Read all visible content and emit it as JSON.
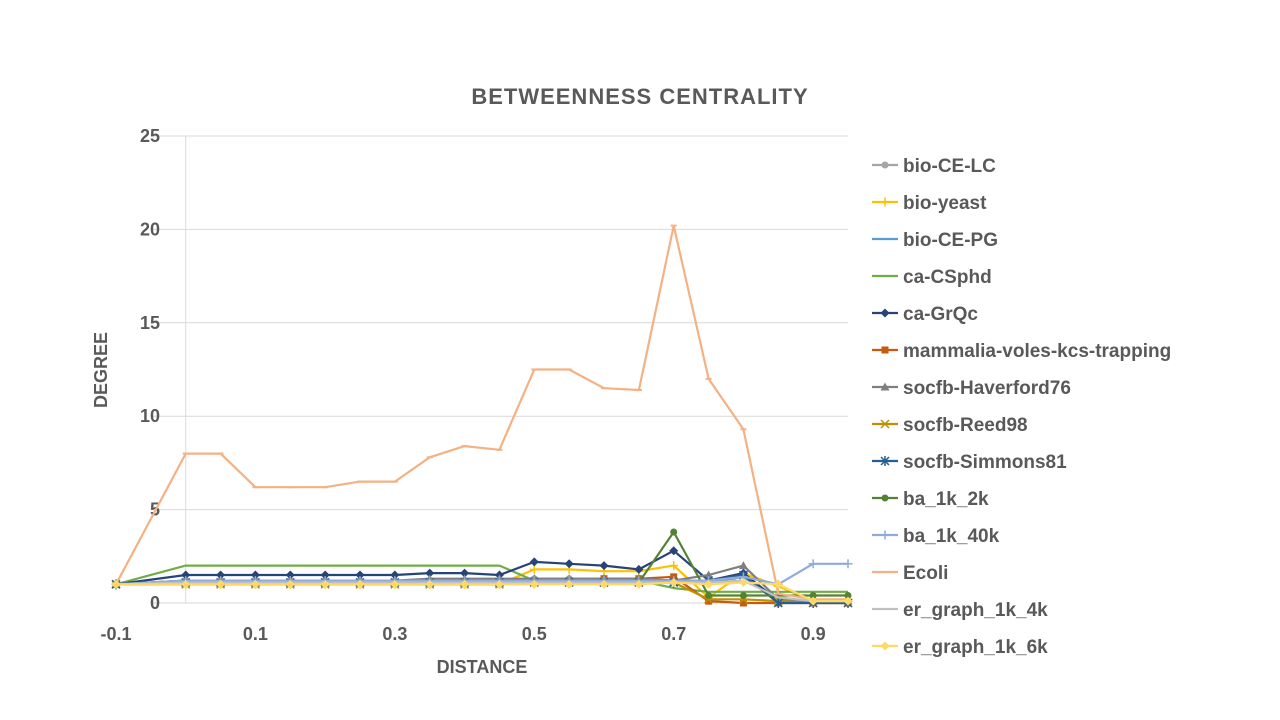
{
  "chart_data": {
    "type": "line",
    "title": "BETWEENNESS CENTRALITY",
    "xlabel": "DISTANCE",
    "ylabel": "DEGREE",
    "xlim": [
      -0.1,
      0.95
    ],
    "ylim": [
      0,
      25
    ],
    "x_ticks": [
      "-0.1",
      "0.1",
      "0.3",
      "0.5",
      "0.7",
      "0.9"
    ],
    "y_ticks": [
      "0",
      "5",
      "10",
      "15",
      "20",
      "25"
    ],
    "grid": "horizontal",
    "legend_position": "right",
    "x": [
      -0.1,
      0,
      0.05,
      0.1,
      0.15,
      0.2,
      0.25,
      0.3,
      0.35,
      0.4,
      0.45,
      0.5,
      0.55,
      0.6,
      0.65,
      0.7,
      0.75,
      0.8,
      0.85,
      0.9,
      0.95
    ],
    "series": [
      {
        "name": "bio-CE-LC",
        "color": "#a5a5a5",
        "marker": "circle",
        "values": [
          1,
          1.2,
          1.2,
          1.2,
          1.2,
          1.2,
          1.2,
          1.2,
          1.2,
          1.2,
          1.2,
          1.3,
          1.3,
          1.3,
          1.3,
          1.2,
          1.2,
          1.5,
          0.2,
          0.1,
          0.1
        ]
      },
      {
        "name": "bio-yeast",
        "color": "#ffc000",
        "marker": "plus",
        "values": [
          1,
          1,
          1,
          1,
          1,
          1,
          1,
          1,
          1,
          1,
          1,
          1.8,
          1.8,
          1.7,
          1.7,
          2,
          0.3,
          1.6,
          0.9,
          0.1,
          0.1
        ]
      },
      {
        "name": "bio-CE-PG",
        "color": "#5b9bd5",
        "marker": "none",
        "values": [
          1,
          1.2,
          1.2,
          1.2,
          1.2,
          1.2,
          1.2,
          1.2,
          1.2,
          1.2,
          1.2,
          1.2,
          1.2,
          1.2,
          1.2,
          1.2,
          1.1,
          1.4,
          0.2,
          0.1,
          0.1
        ]
      },
      {
        "name": "ca-CSphd",
        "color": "#70ad47",
        "marker": "none",
        "values": [
          1,
          2,
          2,
          2,
          2,
          2,
          2,
          2,
          2,
          2,
          2,
          1.2,
          1.2,
          1.2,
          1.2,
          0.8,
          0.6,
          0.6,
          0.6,
          0.6,
          0.6
        ]
      },
      {
        "name": "ca-GrQc",
        "color": "#264478",
        "marker": "diamond",
        "values": [
          1,
          1.5,
          1.5,
          1.5,
          1.5,
          1.5,
          1.5,
          1.5,
          1.6,
          1.6,
          1.5,
          2.2,
          2.1,
          2,
          1.8,
          2.8,
          1.2,
          1.6,
          0.1,
          0.1,
          0.1
        ]
      },
      {
        "name": "mammalia-voles-kcs-trapping",
        "color": "#c55a11",
        "marker": "square",
        "values": [
          1,
          1.1,
          1.1,
          1.1,
          1.1,
          1.1,
          1.1,
          1.1,
          1.1,
          1.1,
          1.1,
          1.2,
          1.2,
          1.3,
          1.3,
          1.4,
          0.1,
          0,
          0,
          0,
          0
        ]
      },
      {
        "name": "socfb-Haverford76",
        "color": "#7f7f7f",
        "marker": "triangle",
        "values": [
          1,
          1.2,
          1.2,
          1.2,
          1.2,
          1.2,
          1.2,
          1.2,
          1.3,
          1.3,
          1.3,
          1.3,
          1.3,
          1.3,
          1.3,
          1.2,
          1.5,
          2,
          0.2,
          0.1,
          0.1
        ]
      },
      {
        "name": "socfb-Reed98",
        "color": "#bf9000",
        "marker": "x",
        "values": [
          1,
          1,
          1,
          1,
          1,
          1,
          1,
          1,
          1,
          1,
          1,
          1.1,
          1.1,
          1.1,
          1.1,
          1.1,
          0.2,
          0.2,
          0.1,
          0,
          0
        ]
      },
      {
        "name": "socfb-Simmons81",
        "color": "#255e91",
        "marker": "star",
        "values": [
          1,
          1.1,
          1.1,
          1.1,
          1.1,
          1.1,
          1.1,
          1.1,
          1.1,
          1.1,
          1.1,
          1.1,
          1.1,
          1.1,
          1.1,
          1.1,
          1.2,
          1.5,
          0,
          0,
          0
        ]
      },
      {
        "name": "ba_1k_2k",
        "color": "#548235",
        "marker": "circle",
        "values": [
          1,
          1,
          1,
          1,
          1,
          1,
          1,
          1,
          1,
          1,
          1,
          1.1,
          1.1,
          1.1,
          1.1,
          3.8,
          0.4,
          0.4,
          0.4,
          0.4,
          0.4
        ]
      },
      {
        "name": "ba_1k_40k",
        "color": "#8faadc",
        "marker": "plus",
        "values": [
          1,
          1.2,
          1.2,
          1.2,
          1.2,
          1.2,
          1.2,
          1.2,
          1.2,
          1.2,
          1.2,
          1.2,
          1.2,
          1.2,
          1.2,
          1.2,
          1.2,
          1.4,
          1,
          2.1,
          2.1
        ]
      },
      {
        "name": "Ecoli",
        "color": "#f4b183",
        "marker": "dash",
        "values": [
          1,
          8,
          8,
          6.2,
          6.2,
          6.2,
          6.5,
          6.5,
          7.8,
          8.4,
          8.2,
          12.5,
          12.5,
          11.5,
          11.4,
          20.2,
          12,
          9.3,
          0.5,
          0.2,
          0.2
        ]
      },
      {
        "name": "er_graph_1k_4k",
        "color": "#bfbfbf",
        "marker": "dash",
        "values": [
          1,
          1.1,
          1.1,
          1.1,
          1.1,
          1.1,
          1.1,
          1.1,
          1.1,
          1.1,
          1.1,
          1.1,
          1.1,
          1.1,
          1.1,
          1.1,
          1.1,
          1.2,
          0.3,
          0.1,
          0.1
        ]
      },
      {
        "name": "er_graph_1k_6k",
        "color": "#ffd966",
        "marker": "diamond",
        "values": [
          1,
          1,
          1,
          1,
          1,
          1,
          1,
          1,
          1,
          1,
          1,
          1,
          1,
          1,
          1,
          1.1,
          1,
          1.1,
          1,
          0.1,
          0.1
        ]
      }
    ]
  }
}
